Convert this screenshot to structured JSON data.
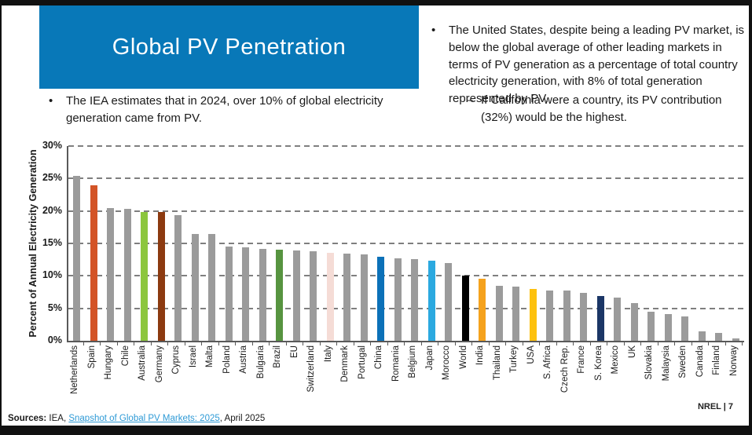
{
  "slide": {
    "title": "Global PV Penetration",
    "left_bullet_marker": "•",
    "left_bullet": "The IEA estimates that in 2024, over 10% of global electricity generation came from PV.",
    "right_bullet_marker": "•",
    "right_bullet": "The United States, despite being a leading PV market, is below the global average of other leading markets in terms of PV generation as a percentage of total country electricity generation, with 8% of total generation represented by PV.",
    "right_sub_bullet_marker": "–",
    "right_sub_bullet": "If California were a country, its PV contribution (32%) would be the highest.",
    "footer": {
      "sources_label": "Sources:",
      "sources_pre": " IEA, ",
      "sources_link": "Snapshot of Global PV Markets: 2025",
      "sources_post": ", April 2025",
      "page_label": "NREL | 7"
    }
  },
  "colors": {
    "title_bg": "#0878B8",
    "link": "#2E9AD6",
    "bar_default": "#9B9B9B"
  },
  "chart_data": {
    "type": "bar",
    "title": "",
    "xlabel": "",
    "ylabel": "Percent of Annual Electricity Generation",
    "ylim": [
      0,
      30
    ],
    "ytick_step": 5,
    "ytick_labels": [
      "0%",
      "5%",
      "10%",
      "15%",
      "20%",
      "25%",
      "30%"
    ],
    "grid": "horizontal-dashed",
    "legend": "none",
    "categories": [
      "Netherlands",
      "Spain",
      "Hungary",
      "Chile",
      "Australia",
      "Germany",
      "Cyprus",
      "Israel",
      "Malta",
      "Poland",
      "Austria",
      "Bulgaria",
      "Brazil",
      "EU",
      "Switzerland",
      "Italy",
      "Denmark",
      "Portugal",
      "China",
      "Romania",
      "Belgium",
      "Japan",
      "Morocco",
      "World",
      "India",
      "Thailand",
      "Turkey",
      "USA",
      "S. Africa",
      "Czech Rep.",
      "France",
      "S. Korea",
      "Mexico",
      "UK",
      "Slovakia",
      "Malaysia",
      "Sweden",
      "Canada",
      "Finland",
      "Norway"
    ],
    "values": [
      25.4,
      24.0,
      20.5,
      20.3,
      19.9,
      19.8,
      19.4,
      16.5,
      16.5,
      14.5,
      14.4,
      14.1,
      14.0,
      13.9,
      13.8,
      13.6,
      13.4,
      13.3,
      13.0,
      12.7,
      12.6,
      12.4,
      12.0,
      10.0,
      9.6,
      8.5,
      8.4,
      8.0,
      7.8,
      7.7,
      7.4,
      6.9,
      6.6,
      5.8,
      4.5,
      4.1,
      3.8,
      1.5,
      1.2,
      0.4
    ],
    "bar_colors": [
      null,
      "#D35427",
      null,
      null,
      "#8CC63E",
      "#8C3A10",
      null,
      null,
      null,
      null,
      null,
      null,
      "#579440",
      null,
      null,
      "#F5DCD6",
      null,
      null,
      "#0C71B8",
      null,
      null,
      "#2BA9E0",
      null,
      "#000000",
      "#F5A21D",
      null,
      null,
      "#FDC10E",
      null,
      null,
      null,
      "#1B3666",
      null,
      null,
      null,
      null,
      null,
      null,
      null,
      null
    ]
  }
}
